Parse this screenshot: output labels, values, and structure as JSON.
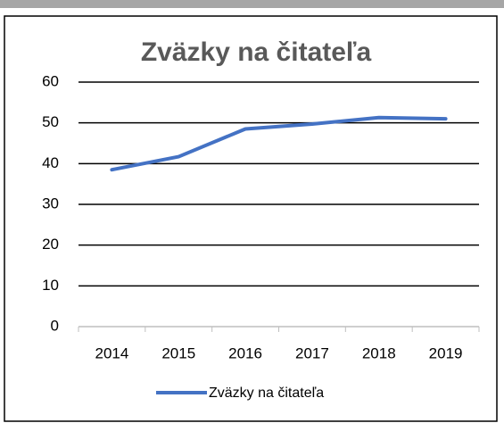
{
  "chart_data": {
    "type": "line",
    "title": "Zväzky na čitateľa",
    "categories": [
      "2014",
      "2015",
      "2016",
      "2017",
      "2018",
      "2019"
    ],
    "series": [
      {
        "name": "Zväzky na čitateľa",
        "color": "#4472c4",
        "values": [
          38.5,
          41.7,
          48.5,
          49.7,
          51.3,
          51.0
        ]
      }
    ],
    "ylim": [
      0,
      60
    ],
    "yticks": [
      0,
      10,
      20,
      30,
      40,
      50,
      60
    ],
    "grid": true,
    "legend": "bottom"
  }
}
